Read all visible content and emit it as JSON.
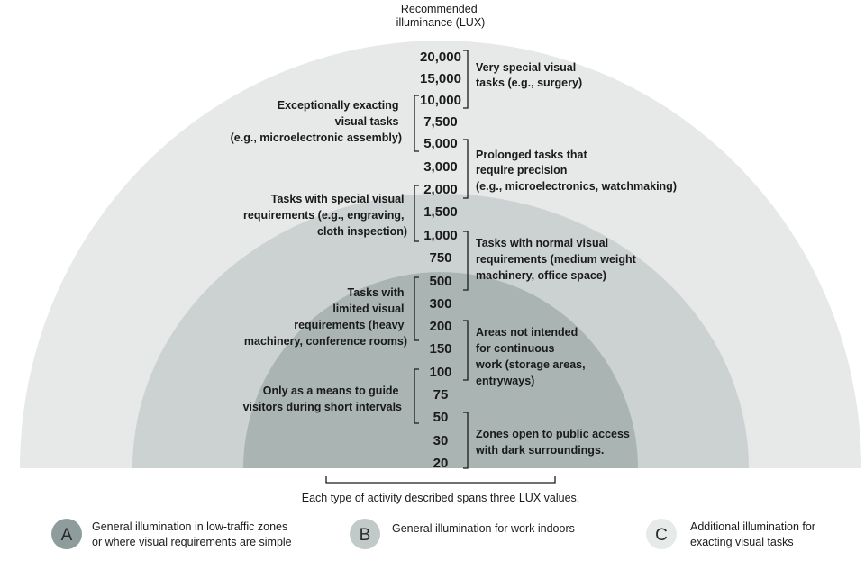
{
  "header": {
    "lines": [
      "Recommended",
      "illuminance (LUX)"
    ]
  },
  "lux_values": [
    "20,000",
    "15,000",
    "10,000",
    "7,500",
    "5,000",
    "3,000",
    "2,000",
    "1,500",
    "1,000",
    "750",
    "500",
    "300",
    "200",
    "150",
    "100",
    "75",
    "50",
    "30",
    "20"
  ],
  "right_annotations": [
    {
      "lines": [
        "Very special visual",
        "tasks (e.g., surgery)"
      ]
    },
    {
      "lines": [
        "Prolonged tasks that",
        "require precision",
        "(e.g., microelectronics, watchmaking)"
      ]
    },
    {
      "lines": [
        "Tasks with normal visual",
        "requirements (medium weight",
        "machinery, office space)"
      ]
    },
    {
      "lines": [
        "Areas not intended",
        "for continuous",
        "work (storage areas,",
        "entryways)"
      ]
    },
    {
      "lines": [
        "Zones open to public access",
        "with dark surroundings."
      ]
    }
  ],
  "left_annotations": [
    {
      "lines": [
        "Exceptionally exacting",
        "visual tasks",
        "(e.g., microelectronic assembly)"
      ]
    },
    {
      "lines": [
        "Tasks with special visual",
        "requirements (e.g., engraving,",
        "cloth inspection)"
      ]
    },
    {
      "lines": [
        "Tasks with",
        "limited visual",
        "requirements (heavy",
        "machinery, conference rooms)"
      ]
    },
    {
      "lines": [
        "Only as a means to guide",
        "visitors during short intervals"
      ]
    }
  ],
  "footnote": "Each type of activity described spans three LUX values.",
  "legend": [
    {
      "letter": "A",
      "color": "#8f9c9c",
      "lines": [
        "General illumination in low-traffic zones",
        "or where visual requirements are simple"
      ]
    },
    {
      "letter": "B",
      "color": "#c2cac9",
      "lines": [
        "General illumination for work indoors"
      ]
    },
    {
      "letter": "C",
      "color": "#e6eae9",
      "lines": [
        "Additional illumination for",
        "exacting visual  tasks"
      ]
    }
  ],
  "colors": {
    "zone_a": "#aab4b3",
    "zone_b": "#ccd2d1",
    "zone_c": "#e6e9e8",
    "legend_a": "#8f9c9c",
    "legend_b": "#c2cac9",
    "legend_c": "#e6eae9"
  }
}
